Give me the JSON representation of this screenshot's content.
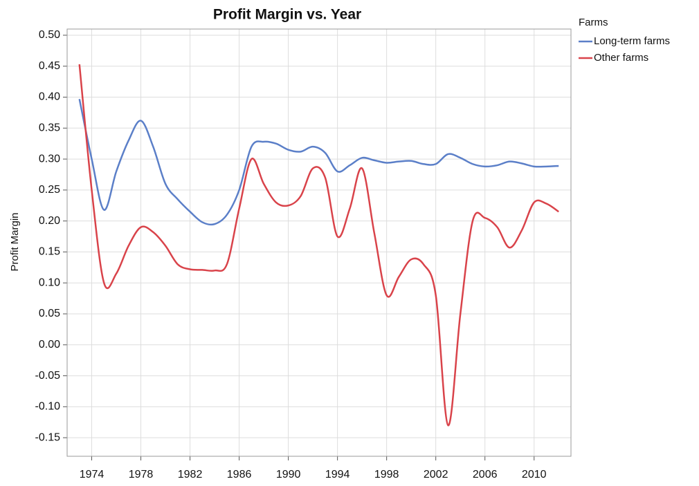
{
  "chart_data": {
    "type": "line",
    "title": "Profit Margin vs. Year",
    "y_label": "Profit Margin",
    "legend_title": "Farms",
    "legend": "right",
    "grid": true,
    "x": [
      1973,
      1974,
      1975,
      1976,
      1977,
      1978,
      1979,
      1980,
      1981,
      1982,
      1983,
      1984,
      1985,
      1986,
      1987,
      1988,
      1989,
      1990,
      1991,
      1992,
      1993,
      1994,
      1995,
      1996,
      1997,
      1998,
      1999,
      2000,
      2001,
      2002,
      2003,
      2004,
      2005,
      2006,
      2007,
      2008,
      2009,
      2010,
      2011,
      2012
    ],
    "series": [
      {
        "name": "Long-term farms",
        "color": "#5b7fc8",
        "values": [
          0.397,
          0.3,
          0.218,
          0.28,
          0.33,
          0.362,
          0.32,
          0.26,
          0.235,
          0.215,
          0.198,
          0.195,
          0.21,
          0.25,
          0.32,
          0.328,
          0.325,
          0.315,
          0.312,
          0.32,
          0.31,
          0.28,
          0.29,
          0.302,
          0.298,
          0.294,
          0.296,
          0.297,
          0.292,
          0.292,
          0.308,
          0.302,
          0.292,
          0.288,
          0.29,
          0.296,
          0.293,
          0.288,
          0.288,
          0.289
        ]
      },
      {
        "name": "Other farms",
        "color": "#d9434a",
        "values": [
          0.453,
          0.25,
          0.1,
          0.115,
          0.16,
          0.19,
          0.182,
          0.16,
          0.13,
          0.122,
          0.121,
          0.12,
          0.13,
          0.22,
          0.3,
          0.26,
          0.23,
          0.225,
          0.24,
          0.285,
          0.27,
          0.175,
          0.22,
          0.285,
          0.18,
          0.08,
          0.11,
          0.138,
          0.13,
          0.08,
          -0.13,
          0.05,
          0.2,
          0.205,
          0.19,
          0.157,
          0.185,
          0.23,
          0.228,
          0.215
        ]
      }
    ],
    "xlim": [
      1972,
      2013
    ],
    "xticks": [
      1974,
      1978,
      1982,
      1986,
      1990,
      1994,
      1998,
      2002,
      2006,
      2010
    ],
    "ylim": [
      -0.18,
      0.51
    ],
    "yticks": [
      {
        "value": 0.5,
        "label": "0.50"
      },
      {
        "value": 0.45,
        "label": "0.45"
      },
      {
        "value": 0.4,
        "label": "0.40"
      },
      {
        "value": 0.35,
        "label": "0.35"
      },
      {
        "value": 0.3,
        "label": "0.30"
      },
      {
        "value": 0.25,
        "label": "0.25"
      },
      {
        "value": 0.2,
        "label": "0.20"
      },
      {
        "value": 0.15,
        "label": "0.15"
      },
      {
        "value": 0.1,
        "label": "0.10"
      },
      {
        "value": 0.05,
        "label": "0.05"
      },
      {
        "value": 0,
        "label": "0.00"
      },
      {
        "value": -0.05,
        "label": "-0.05"
      },
      {
        "value": -0.1,
        "label": "-0.10"
      },
      {
        "value": -0.15,
        "label": "-0.15"
      }
    ]
  }
}
